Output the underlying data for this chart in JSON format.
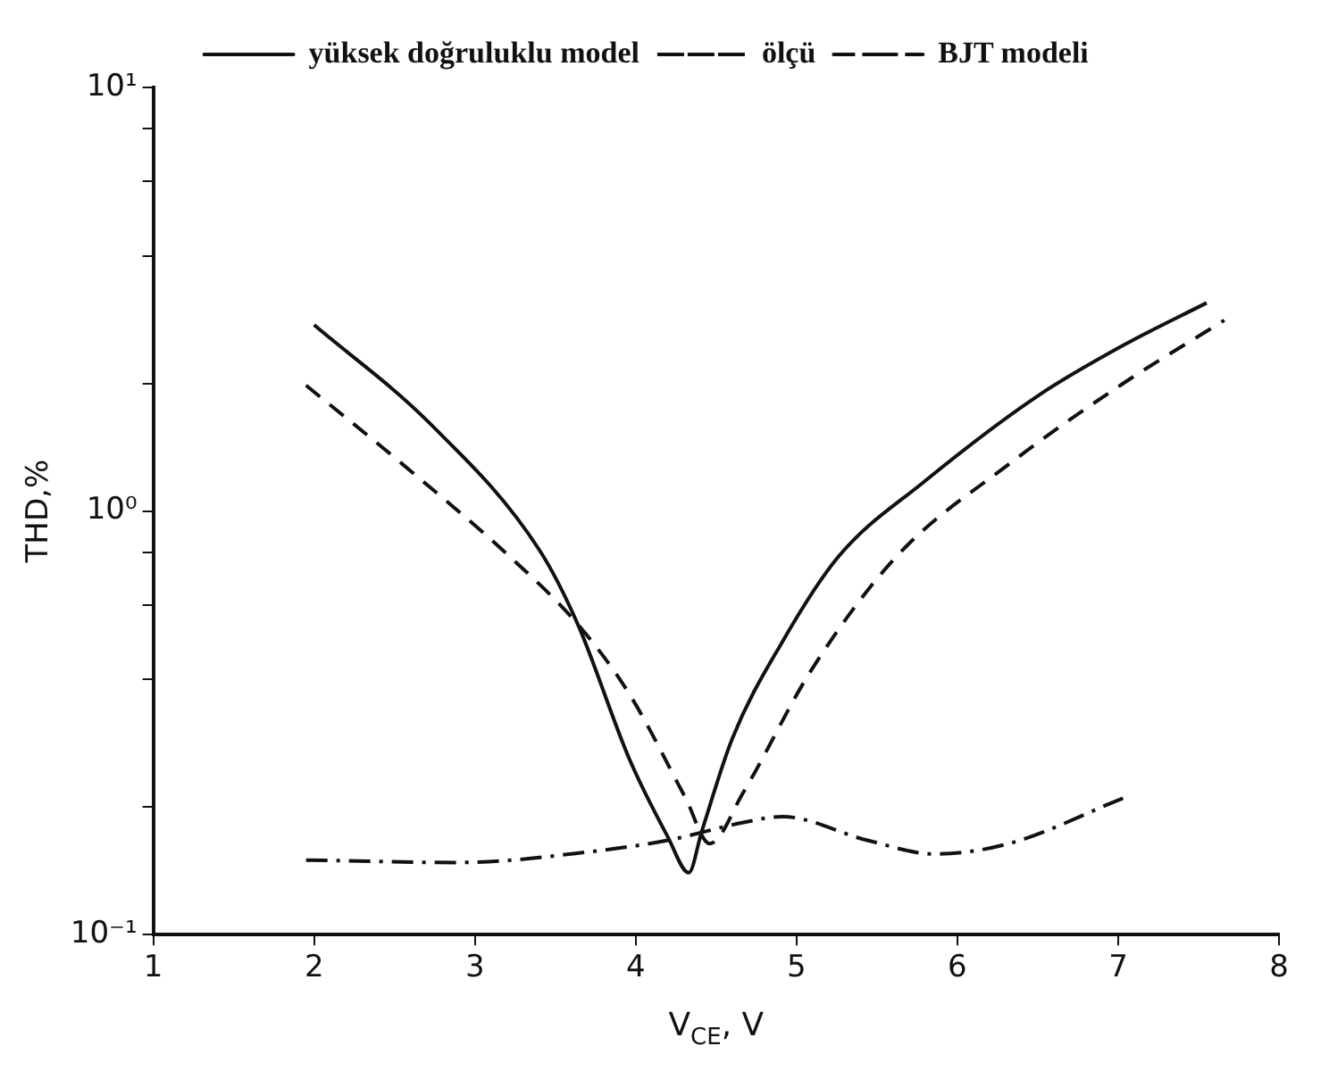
{
  "chart_data": {
    "type": "line",
    "xlabel": "V$_{CE}$, V",
    "ylabel": "THD,%",
    "log": "y",
    "grid": false,
    "legend": "top",
    "marker": "none",
    "xlim": [
      1,
      8
    ],
    "xticks": [
      1,
      2,
      3,
      4,
      5,
      6,
      7,
      8
    ],
    "ylim": [
      0.1,
      10
    ],
    "yticks": [
      {
        "value": 0.1,
        "label": "10⁻¹"
      },
      {
        "value": 0.2,
        "label": null
      },
      {
        "value": 0.4,
        "label": null
      },
      {
        "value": 0.6,
        "label": null
      },
      {
        "value": 0.8,
        "label": null
      },
      {
        "value": 1,
        "label": "10⁰"
      },
      {
        "value": 2,
        "label": null
      },
      {
        "value": 4,
        "label": null
      },
      {
        "value": 6,
        "label": null
      },
      {
        "value": 8,
        "label": null
      },
      {
        "value": 10,
        "label": "10¹"
      }
    ],
    "series": [
      {
        "name": "yüksek doğruluklu model",
        "color": "#111111",
        "line_style": "solid",
        "x": [
          2.0,
          2.72,
          3.4,
          3.64,
          3.96,
          4.2,
          4.33,
          4.41,
          4.6,
          4.91,
          5.26,
          5.79,
          6.5,
          7.03,
          7.55
        ],
        "values": [
          2.75,
          1.61,
          0.81,
          0.54,
          0.26,
          0.17,
          0.14,
          0.175,
          0.29,
          0.49,
          0.78,
          1.17,
          1.87,
          2.46,
          3.1
        ]
      },
      {
        "name": "ölçü",
        "color": "#111111",
        "line_style": "dashed",
        "x": [
          1.95,
          2.55,
          3.25,
          3.64,
          3.96,
          4.31,
          4.46,
          4.67,
          5.09,
          5.62,
          6.32,
          7.03,
          7.66
        ],
        "values": [
          1.98,
          1.29,
          0.76,
          0.54,
          0.37,
          0.21,
          0.164,
          0.217,
          0.42,
          0.78,
          1.29,
          2.0,
          2.82
        ]
      },
      {
        "name": "BJT modeli",
        "color": "#111111",
        "line_style": "dashdot",
        "x": [
          1.95,
          2.9,
          3.72,
          4.2,
          4.67,
          4.91,
          5.44,
          5.86,
          6.32,
          7.03
        ],
        "values": [
          0.15,
          0.148,
          0.157,
          0.167,
          0.184,
          0.19,
          0.167,
          0.155,
          0.164,
          0.21
        ]
      }
    ]
  }
}
